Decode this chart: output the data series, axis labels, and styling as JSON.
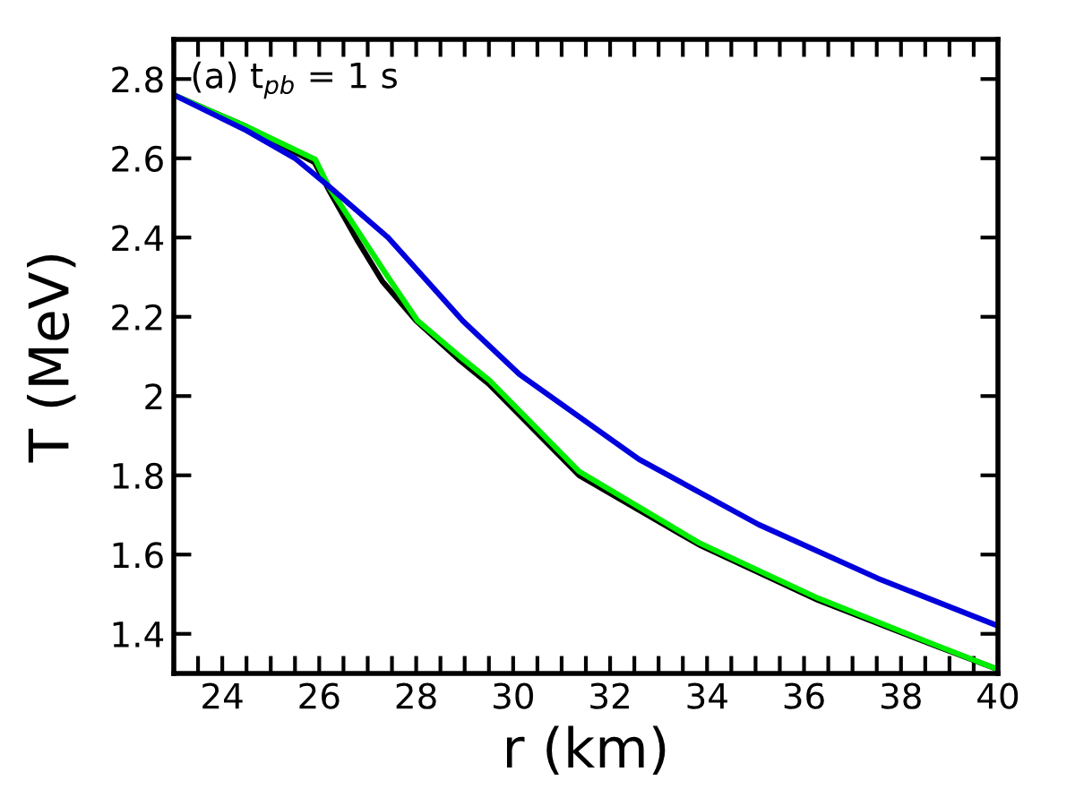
{
  "chart_data": {
    "type": "line",
    "xlabel": "r (km)",
    "ylabel": "T (MeV)",
    "annotations": [
      "(a) t$_{pb}$ = 1 s"
    ],
    "xlim": [
      23,
      40
    ],
    "ylim": [
      1.3,
      2.9
    ],
    "xticks": [
      {
        "value": 23,
        "label": null
      },
      {
        "value": 23.5,
        "label": null
      },
      24,
      {
        "value": 24.5,
        "label": null
      },
      {
        "value": 25,
        "label": null
      },
      {
        "value": 25.5,
        "label": null
      },
      26,
      {
        "value": 26.5,
        "label": null
      },
      {
        "value": 27,
        "label": null
      },
      {
        "value": 27.5,
        "label": null
      },
      28,
      {
        "value": 28.5,
        "label": null
      },
      {
        "value": 29,
        "label": null
      },
      {
        "value": 29.5,
        "label": null
      },
      30,
      {
        "value": 30.5,
        "label": null
      },
      {
        "value": 31,
        "label": null
      },
      {
        "value": 31.5,
        "label": null
      },
      32,
      {
        "value": 32.5,
        "label": null
      },
      {
        "value": 33,
        "label": null
      },
      {
        "value": 33.5,
        "label": null
      },
      34,
      {
        "value": 34.5,
        "label": null
      },
      {
        "value": 35,
        "label": null
      },
      {
        "value": 35.5,
        "label": null
      },
      36,
      {
        "value": 36.5,
        "label": null
      },
      {
        "value": 37,
        "label": null
      },
      {
        "value": 37.5,
        "label": null
      },
      38,
      {
        "value": 38.5,
        "label": null
      },
      {
        "value": 39,
        "label": null
      },
      {
        "value": 39.5,
        "label": null
      },
      40
    ],
    "yticks": [
      1.4,
      1.6,
      1.8,
      {
        "value": 2.0,
        "label": "2"
      },
      2.2,
      2.4,
      2.6,
      2.8
    ],
    "grid": false,
    "legend": false,
    "marker": "none",
    "line_style": "solid",
    "series": [
      {
        "color": "#000000",
        "x": [
          23,
          24.5,
          25.9,
          26.2,
          26.8,
          27.3,
          28.0,
          28.9,
          29.5,
          31.36,
          33.83,
          36.29,
          38.75,
          40
        ],
        "values": [
          2.76,
          2.68,
          2.59,
          2.52,
          2.39,
          2.29,
          2.19,
          2.09,
          2.03,
          1.8,
          1.625,
          1.485,
          1.368,
          1.31
        ]
      },
      {
        "color": "#00ee00",
        "x": [
          23,
          24.5,
          25.92,
          26.19,
          27.42,
          28.03,
          28.9,
          29.51,
          31.36,
          33.83,
          36.29,
          38.75,
          40
        ],
        "values": [
          2.76,
          2.68,
          2.597,
          2.53,
          2.3,
          2.19,
          2.1,
          2.04,
          1.81,
          1.63,
          1.49,
          1.37,
          1.31
        ]
      },
      {
        "color": "#0000dd",
        "x": [
          23,
          24.5,
          25.5,
          26.19,
          27.42,
          28.96,
          30.13,
          32.6,
          35.06,
          37.52,
          40
        ],
        "values": [
          2.76,
          2.67,
          2.6,
          2.53,
          2.4,
          2.19,
          2.055,
          1.84,
          1.676,
          1.54,
          1.42
        ]
      }
    ]
  }
}
